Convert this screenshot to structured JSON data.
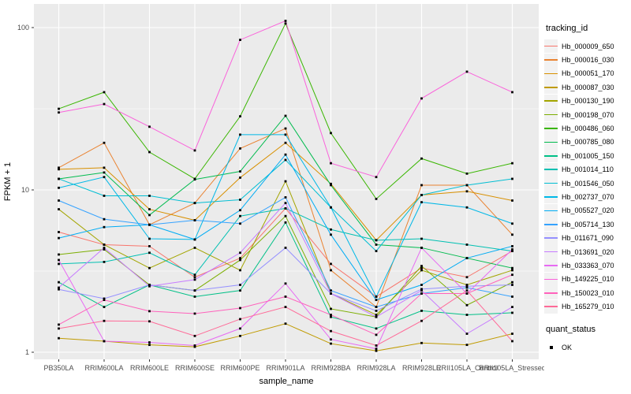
{
  "chart_data": {
    "type": "line",
    "title": "",
    "xlabel": "sample_name",
    "ylabel": "FPKM + 1",
    "y_scale": "log10",
    "y_ticks": [
      1,
      10,
      100
    ],
    "y_tick_labels": [
      "1",
      "10",
      "100"
    ],
    "y_minor_ticks": [
      3.1623,
      31.623
    ],
    "ylim": [
      0.9,
      140
    ],
    "grid": true,
    "legend_position": "right",
    "point_shape": "square",
    "point_color": "#000000",
    "categories": [
      "PB350LA",
      "RRIM600LA",
      "RRIM600LE",
      "RRIM600SE",
      "RRIM600PE",
      "RRIM901LA",
      "RRIM928BA",
      "RRIM928LA",
      "RRIM928LE",
      "RRII105LA_Control",
      "RRII105LA_Stressed"
    ],
    "series": [
      {
        "name": "Hb_000009_650",
        "color": "#F8766D",
        "values": [
          5.5,
          4.6,
          4.5,
          2.9,
          3.8,
          7.7,
          3.5,
          2.2,
          3.3,
          2.9,
          4.2
        ]
      },
      {
        "name": "Hb_000016_030",
        "color": "#EA8331",
        "values": [
          13.7,
          19.5,
          6.1,
          8.3,
          18.0,
          23.9,
          3.2,
          1.9,
          10.7,
          10.7,
          5.3
        ]
      },
      {
        "name": "Hb_000051_170",
        "color": "#D89000",
        "values": [
          13.4,
          13.7,
          7.6,
          6.5,
          11.9,
          19.5,
          10.9,
          4.9,
          9.3,
          9.8,
          8.6
        ]
      },
      {
        "name": "Hb_000087_030",
        "color": "#C09B00",
        "values": [
          1.22,
          1.17,
          1.11,
          1.08,
          1.26,
          1.5,
          1.13,
          1.02,
          1.14,
          1.11,
          1.3
        ]
      },
      {
        "name": "Hb_000130_190",
        "color": "#A3A500",
        "values": [
          7.6,
          4.6,
          3.3,
          4.4,
          3.2,
          11.3,
          2.3,
          1.7,
          3.2,
          2.6,
          3.2
        ]
      },
      {
        "name": "Hb_000198_070",
        "color": "#7CAE00",
        "values": [
          4.0,
          4.3,
          2.6,
          2.4,
          3.7,
          6.9,
          1.85,
          1.65,
          3.4,
          1.95,
          2.7
        ]
      },
      {
        "name": "Hb_000486_060",
        "color": "#39B600",
        "values": [
          31.6,
          40.0,
          17.1,
          11.7,
          28.4,
          106.0,
          22.4,
          8.8,
          15.6,
          12.6,
          14.6
        ]
      },
      {
        "name": "Hb_000785_080",
        "color": "#00BB4E",
        "values": [
          11.7,
          12.8,
          7.0,
          11.6,
          13.0,
          28.6,
          10.7,
          4.6,
          4.4,
          3.8,
          3.3
        ]
      },
      {
        "name": "Hb_001005_150",
        "color": "#00C087",
        "values": [
          2.7,
          1.9,
          2.6,
          2.2,
          2.4,
          6.3,
          1.65,
          1.4,
          1.8,
          1.7,
          1.75
        ]
      },
      {
        "name": "Hb_001014_110",
        "color": "#00C0B2",
        "values": [
          3.5,
          3.6,
          4.1,
          3.0,
          6.9,
          7.7,
          5.7,
          4.9,
          5.0,
          4.6,
          4.2
        ]
      },
      {
        "name": "Hb_001546_050",
        "color": "#00BED3",
        "values": [
          11.7,
          9.2,
          9.2,
          8.3,
          8.7,
          15.3,
          7.8,
          4.2,
          9.3,
          10.7,
          11.7
        ]
      },
      {
        "name": "Hb_002737_070",
        "color": "#00B8E7",
        "values": [
          10.3,
          12.0,
          5.0,
          4.95,
          21.9,
          21.9,
          7.8,
          2.2,
          8.4,
          7.8,
          6.2
        ]
      },
      {
        "name": "Hb_005527_020",
        "color": "#00ACF4",
        "values": [
          5.05,
          5.9,
          6.1,
          4.95,
          7.5,
          16.5,
          5.3,
          2.1,
          2.6,
          3.8,
          4.5
        ]
      },
      {
        "name": "Hb_005714_130",
        "color": "#35A2FF",
        "values": [
          8.6,
          6.6,
          6.1,
          6.5,
          6.2,
          9.0,
          2.4,
          1.9,
          2.3,
          2.5,
          2.2
        ]
      },
      {
        "name": "Hb_011671_090",
        "color": "#9590FF",
        "values": [
          2.44,
          2.14,
          2.6,
          2.4,
          2.6,
          4.4,
          2.3,
          1.8,
          2.45,
          2.55,
          2.6
        ]
      },
      {
        "name": "Hb_013691_020",
        "color": "#C77CFF",
        "values": [
          2.5,
          4.4,
          2.55,
          2.8,
          4.1,
          8.3,
          2.3,
          1.65,
          2.4,
          1.3,
          1.9
        ]
      },
      {
        "name": "Hb_033363_070",
        "color": "#E76BF3",
        "values": [
          3.7,
          1.17,
          1.15,
          1.1,
          1.4,
          2.65,
          1.2,
          1.05,
          4.4,
          2.3,
          4.3
        ]
      },
      {
        "name": "Hb_149225_010",
        "color": "#FA62DB",
        "values": [
          30.0,
          33.8,
          24.5,
          17.5,
          84.0,
          110.0,
          14.6,
          12.0,
          36.6,
          53.5,
          40.0
        ]
      },
      {
        "name": "Hb_150023_010",
        "color": "#FF62BC",
        "values": [
          1.48,
          2.1,
          1.79,
          1.73,
          1.87,
          2.2,
          1.7,
          1.28,
          2.3,
          2.3,
          3.0
        ]
      },
      {
        "name": "Hb_165279_010",
        "color": "#FF6A98",
        "values": [
          1.4,
          1.56,
          1.55,
          1.26,
          1.6,
          1.9,
          1.35,
          1.1,
          1.56,
          2.4,
          1.17
        ]
      }
    ]
  },
  "legend": {
    "tracking_title": "tracking_id",
    "quant_title": "quant_status",
    "quant_items": [
      {
        "label": "OK"
      }
    ]
  },
  "colors": {
    "panel_bg": "#EBEBEB",
    "grid": "#FFFFFF",
    "tick_text": "#4D4D4D",
    "axis_title": "#000000",
    "tick_mark": "#333333",
    "point": "#000000",
    "legend_key_bg": "#F2F2F2"
  }
}
